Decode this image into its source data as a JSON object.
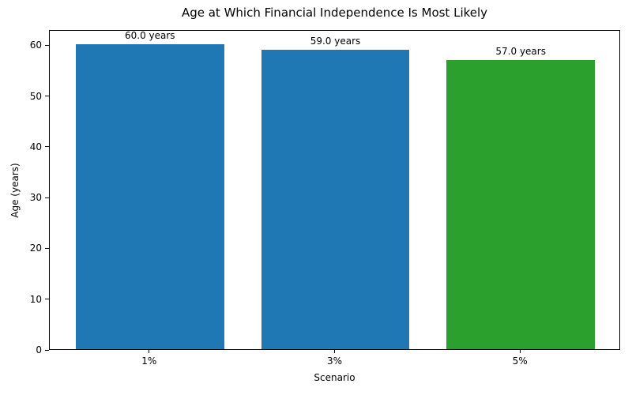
{
  "chart_data": {
    "type": "bar",
    "title": "Age at Which Financial Independence Is Most Likely",
    "xlabel": "Scenario",
    "ylabel": "Age (years)",
    "categories": [
      "1%",
      "3%",
      "5%"
    ],
    "values": [
      60.0,
      59.0,
      57.0
    ],
    "bar_labels": [
      "60.0 years",
      "59.0 years",
      "57.0 years"
    ],
    "bar_colors": [
      "#1f77b4",
      "#1f77b4",
      "#2ca02c"
    ],
    "ylim": [
      0,
      63
    ],
    "yticks": [
      0,
      10,
      20,
      30,
      40,
      50,
      60
    ],
    "bar_width_fraction": 0.8,
    "grid": false,
    "legend_position": "none",
    "axis_color": "#000000",
    "text_color": "#000000",
    "background_color": "#ffffff"
  }
}
